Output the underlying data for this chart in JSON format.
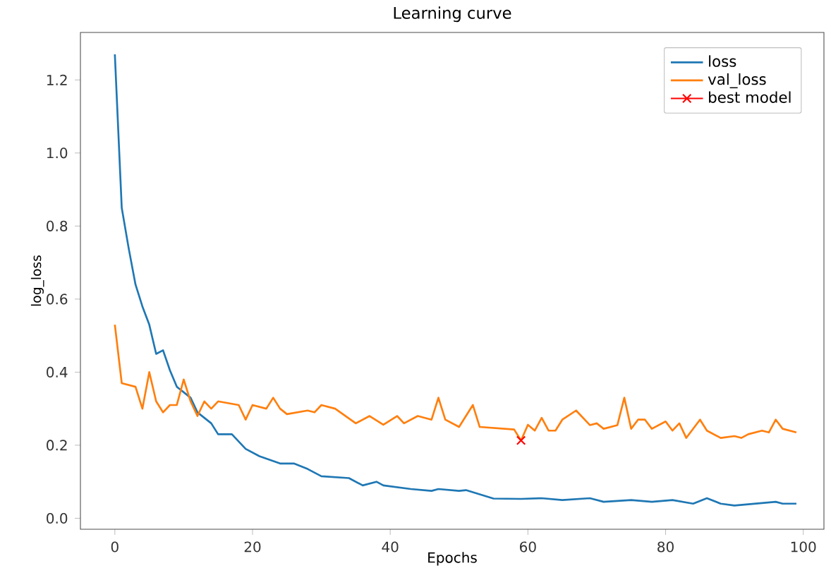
{
  "chart_data": {
    "type": "line",
    "title": "Learning curve",
    "xlabel": "Epochs",
    "ylabel": "log_loss",
    "xlim": [
      -5,
      103
    ],
    "ylim": [
      -0.03,
      1.33
    ],
    "xticks": [
      0,
      20,
      40,
      60,
      80,
      100
    ],
    "yticks": [
      {
        "value": 0,
        "label": "0.0"
      },
      {
        "value": 0.2,
        "label": "0.2"
      },
      {
        "value": 0.4,
        "label": "0.4"
      },
      {
        "value": 0.6,
        "label": "0.6"
      },
      {
        "value": 0.8,
        "label": "0.8"
      },
      {
        "value": 1.0,
        "label": "1.0"
      },
      {
        "value": 1.2,
        "label": "1.2"
      }
    ],
    "grid": false,
    "legend": "top right",
    "line_style": "solid",
    "series": [
      {
        "name": "loss",
        "color": "#1f77b4",
        "x": [
          0,
          1,
          2,
          3,
          4,
          5,
          6,
          7,
          8,
          9,
          11,
          12,
          14,
          15,
          17,
          19,
          21,
          24,
          26,
          28,
          30,
          34,
          36,
          38,
          39,
          43,
          46,
          47,
          50,
          51,
          55,
          59,
          62,
          65,
          69,
          71,
          75,
          78,
          81,
          84,
          86,
          88,
          90,
          96,
          97,
          99
        ],
        "values": [
          1.27,
          0.85,
          0.74,
          0.64,
          0.58,
          0.53,
          0.45,
          0.46,
          0.405,
          0.36,
          0.33,
          0.29,
          0.26,
          0.23,
          0.23,
          0.19,
          0.17,
          0.15,
          0.15,
          0.135,
          0.115,
          0.11,
          0.09,
          0.1,
          0.09,
          0.08,
          0.075,
          0.08,
          0.075,
          0.077,
          0.054,
          0.053,
          0.055,
          0.05,
          0.055,
          0.045,
          0.05,
          0.045,
          0.05,
          0.04,
          0.055,
          0.04,
          0.035,
          0.045,
          0.04,
          0.04
        ]
      },
      {
        "name": "val_loss",
        "color": "#ff7f0e",
        "x": [
          0,
          1,
          3,
          4,
          5,
          6,
          7,
          8,
          9,
          10,
          11,
          12,
          13,
          14,
          15,
          18,
          19,
          20,
          22,
          23,
          24,
          25,
          28,
          29,
          30,
          32,
          35,
          37,
          39,
          41,
          42,
          44,
          46,
          47,
          48,
          50,
          52,
          53,
          58,
          59,
          60,
          61,
          62,
          63,
          64,
          65,
          67,
          69,
          70,
          71,
          73,
          74,
          75,
          76,
          77,
          78,
          80,
          81,
          82,
          83,
          85,
          86,
          88,
          90,
          91,
          92,
          94,
          95,
          96,
          97,
          99
        ],
        "values": [
          0.53,
          0.37,
          0.36,
          0.3,
          0.4,
          0.32,
          0.29,
          0.31,
          0.31,
          0.38,
          0.32,
          0.28,
          0.32,
          0.3,
          0.32,
          0.31,
          0.27,
          0.31,
          0.3,
          0.33,
          0.3,
          0.285,
          0.295,
          0.29,
          0.31,
          0.3,
          0.26,
          0.28,
          0.256,
          0.28,
          0.26,
          0.28,
          0.27,
          0.33,
          0.27,
          0.25,
          0.31,
          0.25,
          0.243,
          0.213,
          0.256,
          0.24,
          0.275,
          0.24,
          0.24,
          0.27,
          0.295,
          0.255,
          0.26,
          0.245,
          0.255,
          0.33,
          0.245,
          0.27,
          0.27,
          0.245,
          0.265,
          0.24,
          0.26,
          0.22,
          0.27,
          0.24,
          0.22,
          0.225,
          0.22,
          0.23,
          0.24,
          0.235,
          0.27,
          0.245,
          0.235
        ]
      },
      {
        "name": "best model",
        "type": "scatter",
        "color": "#ff0000",
        "marker": "cross",
        "x": [
          59
        ],
        "values": [
          0.213
        ]
      }
    ]
  }
}
